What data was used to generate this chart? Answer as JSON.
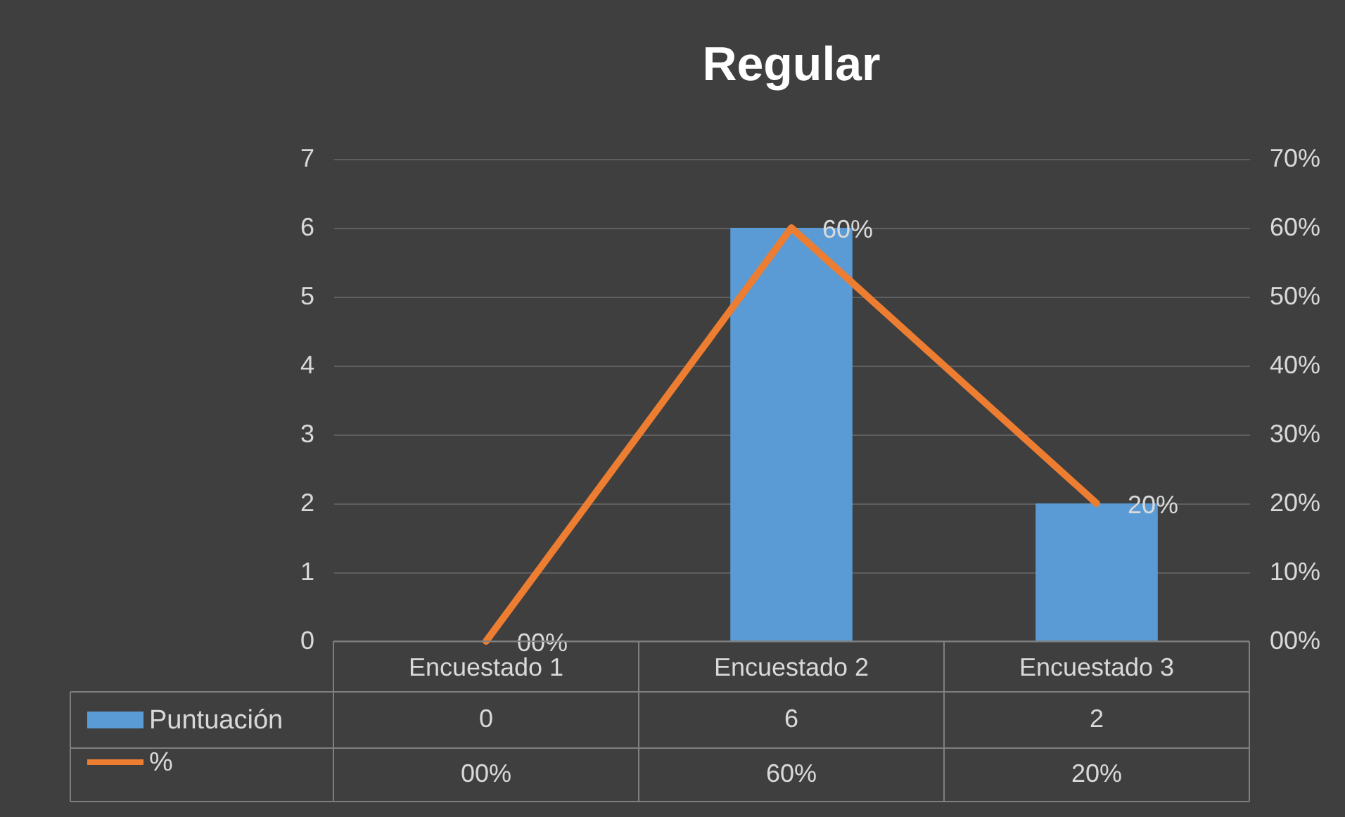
{
  "chart_data": {
    "type": "bar",
    "title": "Regular",
    "categories": [
      "Encuestado 1",
      "Encuestado 2",
      "Encuestado 3"
    ],
    "series": [
      {
        "name": "Puntuación",
        "color": "#5b9bd5",
        "values": [
          0,
          6,
          2
        ],
        "value_labels": [
          "0",
          "6",
          "2"
        ]
      },
      {
        "name": "%",
        "type": "line",
        "axis": "y2",
        "color": "#ed7d31",
        "values": [
          0,
          60,
          20
        ],
        "value_labels": [
          "00%",
          "60%",
          "20%"
        ]
      }
    ],
    "ylim": [
      0,
      7
    ],
    "yticks": [
      0,
      1,
      2,
      3,
      4,
      5,
      6,
      7
    ],
    "y2lim": [
      0,
      70
    ],
    "y2ticks": [
      {
        "value": 0,
        "label": "00%"
      },
      {
        "value": 10,
        "label": "10%"
      },
      {
        "value": 20,
        "label": "20%"
      },
      {
        "value": 30,
        "label": "30%"
      },
      {
        "value": 40,
        "label": "40%"
      },
      {
        "value": 50,
        "label": "50%"
      },
      {
        "value": 60,
        "label": "60%"
      },
      {
        "value": 70,
        "label": "70%"
      }
    ],
    "grid": "y",
    "legend": "bottom"
  }
}
